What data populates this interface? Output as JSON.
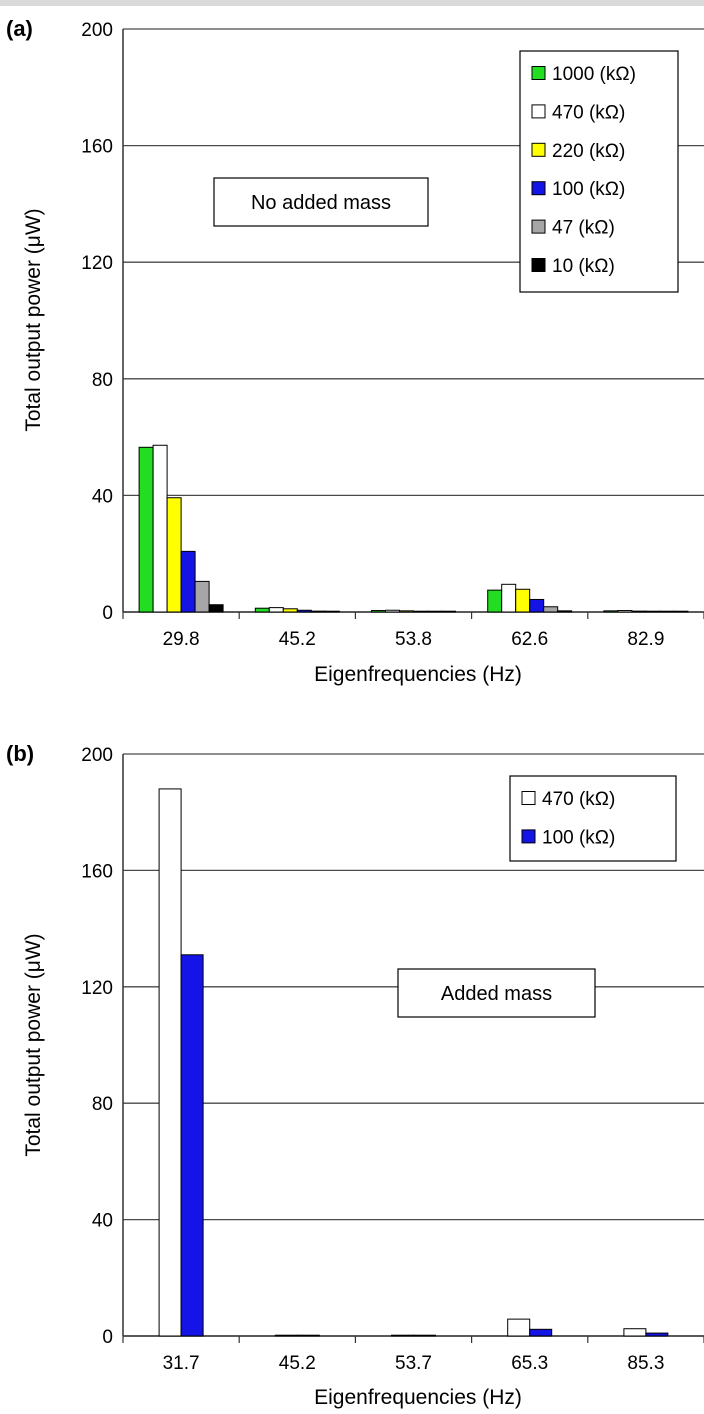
{
  "chart_data": [
    {
      "type": "bar",
      "panel_label": "(a)",
      "annotation": "No added mass",
      "xlabel": "Eigenfrequencies (Hz)",
      "ylabel": "Total output power (μW)",
      "ylim": [
        0,
        200
      ],
      "yticks": [
        "0",
        "40",
        "80",
        "120",
        "160",
        "200"
      ],
      "grid": true,
      "legend_position": "top-right",
      "categories": [
        "29.8",
        "45.2",
        "53.8",
        "62.6",
        "82.9"
      ],
      "series": [
        {
          "name": "1000 (kΩ)",
          "color": "#22dd22",
          "values": [
            56.5,
            1.3,
            0.5,
            7.5,
            0.4
          ]
        },
        {
          "name": "470 (kΩ)",
          "color": "#ffffff",
          "values": [
            57.2,
            1.5,
            0.6,
            9.5,
            0.5
          ]
        },
        {
          "name": "220 (kΩ)",
          "color": "#ffff00",
          "values": [
            39.2,
            1.1,
            0.4,
            7.8,
            0.3
          ]
        },
        {
          "name": "100 (kΩ)",
          "color": "#1414e6",
          "values": [
            20.8,
            0.6,
            0.2,
            4.3,
            0.2
          ]
        },
        {
          "name": "47 (kΩ)",
          "color": "#a6a6a6",
          "values": [
            10.5,
            0.3,
            0.1,
            1.8,
            0.1
          ]
        },
        {
          "name": "10 (kΩ)",
          "color": "#000000",
          "values": [
            2.5,
            0.1,
            0.05,
            0.4,
            0.05
          ]
        }
      ]
    },
    {
      "type": "bar",
      "panel_label": "(b)",
      "annotation": "Added mass",
      "xlabel": "Eigenfrequencies (Hz)",
      "ylabel": "Total output power (μW)",
      "ylim": [
        0,
        200
      ],
      "yticks": [
        "0",
        "40",
        "80",
        "120",
        "160",
        "200"
      ],
      "grid": true,
      "legend_position": "top-right",
      "categories": [
        "31.7",
        "45.2",
        "53.7",
        "65.3",
        "85.3"
      ],
      "series": [
        {
          "name": "470 (kΩ)",
          "color": "#ffffff",
          "values": [
            188,
            0,
            0,
            5.8,
            2.5
          ]
        },
        {
          "name": "100 (kΩ)",
          "color": "#1414e6",
          "values": [
            131,
            0,
            0,
            2.3,
            1.0
          ]
        }
      ]
    }
  ]
}
